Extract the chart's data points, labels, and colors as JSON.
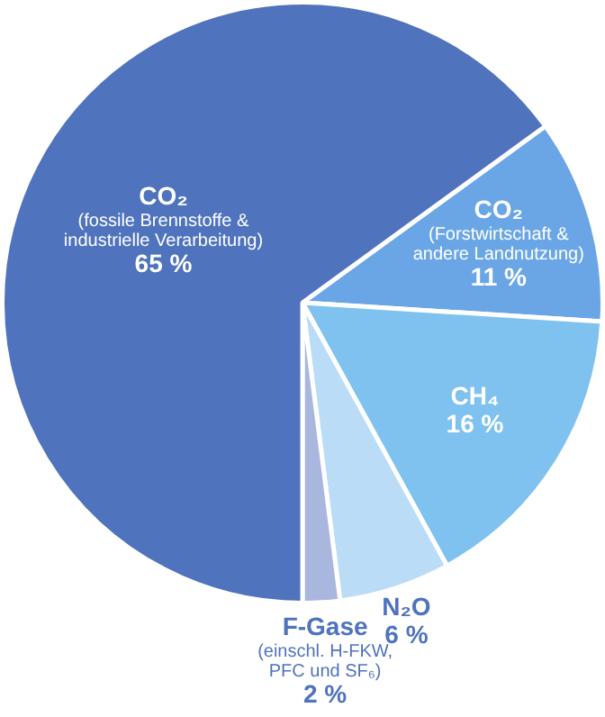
{
  "chart_data": {
    "type": "pie",
    "categories": [
      "CO₂ (Forstwirtschaft & andere Landnutzung)",
      "CH₄",
      "N₂O",
      "F-Gase (einschl. H-FKW, PFC und SF₆)",
      "CO₂ (fossile Brennstoffe & industrielle Verarbeitung)"
    ],
    "values": [
      11,
      16,
      6,
      2,
      65
    ],
    "value_labels": [
      "11 %",
      "16 %",
      "6 %",
      "2 %",
      "65 %"
    ],
    "colors": [
      "#6aa6e6",
      "#80c2ef",
      "#badcf6",
      "#a9b6de",
      "#4f73bd"
    ],
    "legend": false
  }
}
